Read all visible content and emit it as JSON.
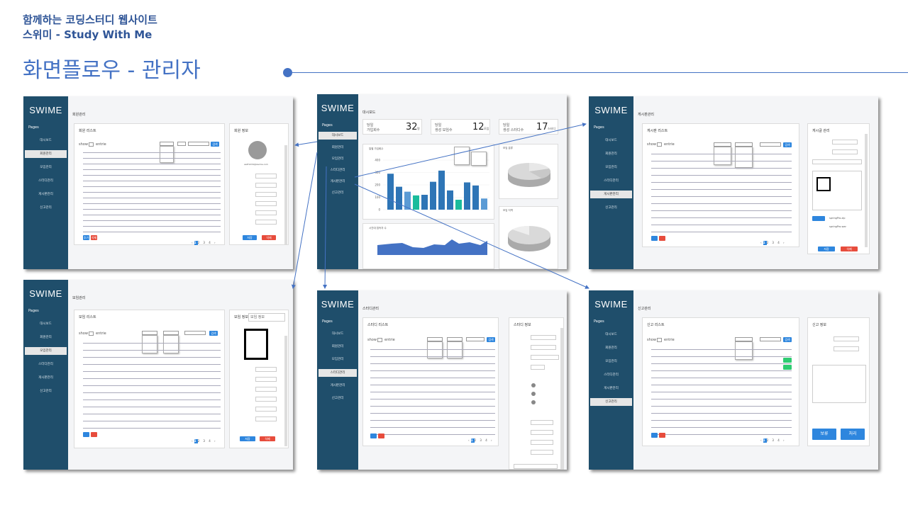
{
  "header": {
    "line1": "함께하는 코딩스터디 웹사이트",
    "line2": "스위미 - Study With Me",
    "title": "화면플로우 - 관리자"
  },
  "app": {
    "logo": "SWIME",
    "pages_label": "Pages"
  },
  "nav": [
    "대시보드",
    "회원관리",
    "모임관리",
    "스터디관리",
    "게시판관리",
    "신고관리"
  ],
  "screens": {
    "member": {
      "title": "회원관리",
      "list_title": "회원 리스트",
      "info_title": "회원 정보",
      "show": "show",
      "entries": "entrie",
      "search_btn": "검색",
      "add_btn": "추가",
      "del_btn": "삭제",
      "save_btn": "저장",
      "delete_btn": "삭제",
      "email": "asdf1234@swime.com"
    },
    "group": {
      "title": "모임관리",
      "list_title": "모임 리스트",
      "info_title": "모임 정보",
      "show": "show",
      "entries": "entrie",
      "search_btn": "검색",
      "save_btn": "저장",
      "delete_btn": "삭제"
    },
    "dashboard": {
      "title": "대시보드",
      "stats": [
        {
          "l1": "당일",
          "l2": "가입회수",
          "v": "32",
          "u": "명"
        },
        {
          "l1": "당일",
          "l2": "생성 모임수",
          "v": "12",
          "u": "모임"
        },
        {
          "l1": "당일",
          "l2": "생성 스터디수",
          "v": "17",
          "u": "스터디"
        }
      ],
      "chart1_title": "일별 가입회수",
      "chart2_title": "모임 분류",
      "chart3_title": "시간대 접속자 수",
      "chart4_title": "모임 지역"
    },
    "study": {
      "title": "스터디관리",
      "list_title": "스터디 리스트",
      "info_title": "스터디 정보",
      "show": "show",
      "entries": "entrie",
      "search_btn": "검색"
    },
    "board": {
      "title": "게시판관리",
      "list_title": "게시판 리스트",
      "info_title": "게시글 관리",
      "show": "show",
      "entries": "entrie",
      "search_btn": "검색",
      "file1": "springPro.zip",
      "file2": "springPro.war",
      "save_btn": "저장",
      "delete_btn": "삭제"
    },
    "report": {
      "title": "신고관리",
      "list_title": "신고 리스트",
      "info_title": "신고 정보",
      "show": "show",
      "entries": "entrie",
      "search_btn": "검색",
      "hold_btn": "보류",
      "process_btn": "처리"
    }
  },
  "chart_data": {
    "type": "bar",
    "values": [
      290,
      185,
      145,
      115,
      120,
      225,
      315,
      155,
      80,
      220,
      195,
      90
    ],
    "colors": [
      "#2e75b6",
      "#2e75b6",
      "#5b9bd5",
      "#1abc9c",
      "#2e75b6",
      "#2e75b6",
      "#2e75b6",
      "#2e75b6",
      "#1abc9c",
      "#2e75b6",
      "#2e75b6",
      "#5b9bd5"
    ],
    "yticks": [
      "400",
      "300",
      "200",
      "100",
      "0"
    ]
  }
}
